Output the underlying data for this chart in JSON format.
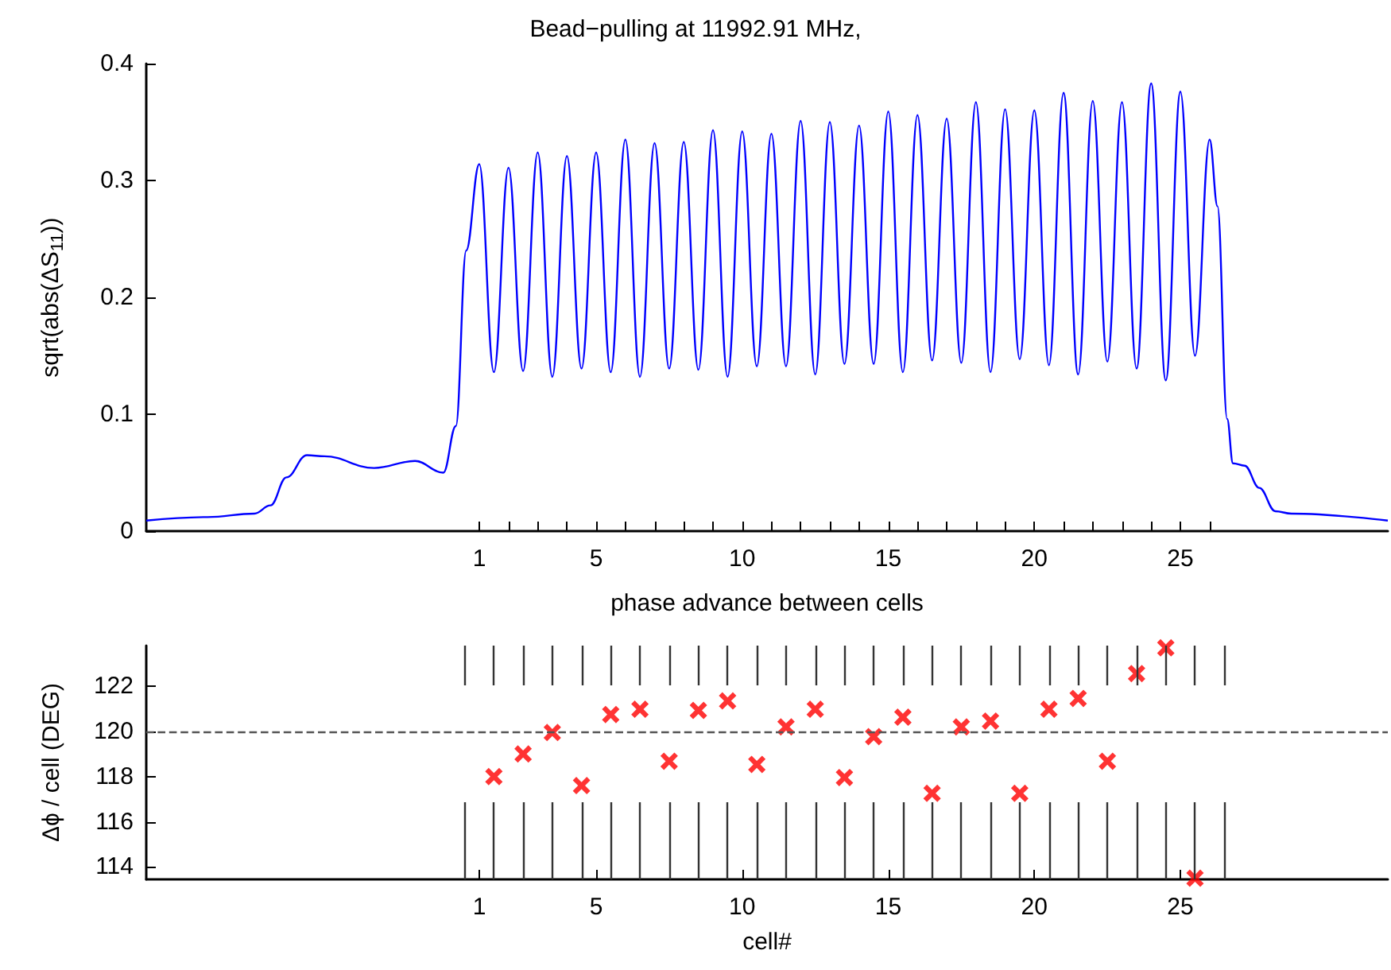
{
  "chart_data": [
    {
      "type": "line",
      "title": "Bead−pulling at 11992.91 MHz,",
      "xlabel": "phase advance between cells",
      "ylabel": "sqrt(abs(ΔS$_{11}$))",
      "color": "#0000ff",
      "x": [
        -10.4,
        -8.3,
        -6.7,
        -6.15,
        -5.6,
        -4.9,
        -4.3,
        -2.6,
        -1.2,
        -0.23,
        0.2,
        0.55,
        1,
        1.5,
        2,
        2.5,
        3,
        3.5,
        4,
        4.5,
        5,
        5.5,
        6,
        6.5,
        7,
        7.5,
        8,
        8.5,
        9,
        9.5,
        10,
        10.5,
        11,
        11.5,
        12,
        12.5,
        13,
        13.5,
        14,
        14.5,
        15,
        15.5,
        16,
        16.5,
        17,
        17.5,
        18,
        18.5,
        19,
        19.5,
        20,
        20.5,
        21,
        21.5,
        22,
        22.5,
        23,
        23.5,
        24,
        24.5,
        25,
        25.5,
        26,
        26.27,
        26.6,
        26.8,
        27.2,
        27.7,
        28.25,
        28.8,
        32.1
      ],
      "values": [
        0.009,
        0.012,
        0.015,
        0.022,
        0.046,
        0.065,
        0.064,
        0.054,
        0.06,
        0.05,
        0.09,
        0.24,
        0.314,
        0.136,
        0.311,
        0.137,
        0.324,
        0.132,
        0.321,
        0.139,
        0.324,
        0.136,
        0.335,
        0.132,
        0.332,
        0.139,
        0.333,
        0.138,
        0.343,
        0.132,
        0.342,
        0.141,
        0.34,
        0.141,
        0.351,
        0.134,
        0.35,
        0.143,
        0.347,
        0.143,
        0.359,
        0.136,
        0.356,
        0.146,
        0.353,
        0.144,
        0.367,
        0.136,
        0.361,
        0.147,
        0.36,
        0.142,
        0.375,
        0.134,
        0.368,
        0.145,
        0.367,
        0.139,
        0.383,
        0.129,
        0.376,
        0.15,
        0.335,
        0.278,
        0.096,
        0.058,
        0.056,
        0.037,
        0.017,
        0.015,
        0.009
      ],
      "xlim": [
        -10.4,
        32.1
      ],
      "xticks": [
        1,
        {
          "value": 2,
          "label": null
        },
        {
          "value": 3,
          "label": null
        },
        {
          "value": 4,
          "label": null
        },
        5,
        {
          "value": 6,
          "label": null
        },
        {
          "value": 7,
          "label": null
        },
        {
          "value": 8,
          "label": null
        },
        {
          "value": 9,
          "label": null
        },
        10,
        {
          "value": 11,
          "label": null
        },
        {
          "value": 12,
          "label": null
        },
        {
          "value": 13,
          "label": null
        },
        {
          "value": 14,
          "label": null
        },
        15,
        {
          "value": 16,
          "label": null
        },
        {
          "value": 17,
          "label": null
        },
        {
          "value": 18,
          "label": null
        },
        {
          "value": 19,
          "label": null
        },
        20,
        {
          "value": 21,
          "label": null
        },
        {
          "value": 22,
          "label": null
        },
        {
          "value": 23,
          "label": null
        },
        {
          "value": 24,
          "label": null
        },
        25,
        {
          "value": 26,
          "label": null
        }
      ],
      "ylim": [
        0,
        0.4
      ],
      "yticks": [
        0,
        0.1,
        0.2,
        0.3,
        0.4
      ]
    },
    {
      "type": "scatter",
      "xlabel": "cell#",
      "ylabel": "Δϕ / cell (DEG)",
      "color": "#ff0000",
      "marker": "cross",
      "x": [
        1.5,
        2.5,
        3.5,
        4.5,
        5.5,
        6.5,
        7.5,
        8.5,
        9.5,
        10.5,
        11.5,
        12.5,
        13.5,
        14.5,
        15.5,
        16.5,
        17.5,
        18.5,
        19.5,
        20.5,
        21.5,
        22.5,
        23.5,
        24.5,
        25.5
      ],
      "values": [
        118.0,
        119.0,
        119.95,
        117.6,
        120.75,
        120.98,
        118.68,
        120.93,
        121.35,
        118.54,
        120.2,
        120.98,
        117.96,
        119.77,
        120.63,
        117.26,
        120.2,
        120.46,
        117.26,
        120.98,
        121.46,
        118.68,
        122.56,
        123.7,
        113.5
      ],
      "xlim": [
        -10.4,
        32.1
      ],
      "xticks": [
        1,
        5,
        10,
        15,
        20,
        25
      ],
      "ylim": [
        113.45,
        123.8
      ],
      "yticks": [
        114,
        116,
        118,
        120,
        122
      ],
      "ref_lines": [
        {
          "axis": "y",
          "value": 120,
          "color": "#555555",
          "line_style": "dashed"
        },
        {
          "axis": "x",
          "value": 0.5,
          "color": "#333333"
        },
        {
          "axis": "x",
          "value": 1.5,
          "color": "#333333"
        },
        {
          "axis": "x",
          "value": 2.5,
          "color": "#333333"
        },
        {
          "axis": "x",
          "value": 3.5,
          "color": "#333333"
        },
        {
          "axis": "x",
          "value": 4.5,
          "color": "#333333"
        },
        {
          "axis": "x",
          "value": 5.5,
          "color": "#333333"
        },
        {
          "axis": "x",
          "value": 6.5,
          "color": "#333333"
        },
        {
          "axis": "x",
          "value": 7.5,
          "color": "#333333"
        },
        {
          "axis": "x",
          "value": 8.5,
          "color": "#333333"
        },
        {
          "axis": "x",
          "value": 9.5,
          "color": "#333333"
        },
        {
          "axis": "x",
          "value": 10.5,
          "color": "#333333"
        },
        {
          "axis": "x",
          "value": 11.5,
          "color": "#333333"
        },
        {
          "axis": "x",
          "value": 12.5,
          "color": "#333333"
        },
        {
          "axis": "x",
          "value": 13.5,
          "color": "#333333"
        },
        {
          "axis": "x",
          "value": 14.5,
          "color": "#333333"
        },
        {
          "axis": "x",
          "value": 15.5,
          "color": "#333333"
        },
        {
          "axis": "x",
          "value": 16.5,
          "color": "#333333"
        },
        {
          "axis": "x",
          "value": 17.5,
          "color": "#333333"
        },
        {
          "axis": "x",
          "value": 18.5,
          "color": "#333333"
        },
        {
          "axis": "x",
          "value": 19.5,
          "color": "#333333"
        },
        {
          "axis": "x",
          "value": 20.5,
          "color": "#333333"
        },
        {
          "axis": "x",
          "value": 21.5,
          "color": "#333333"
        },
        {
          "axis": "x",
          "value": 22.5,
          "color": "#333333"
        },
        {
          "axis": "x",
          "value": 23.5,
          "color": "#333333"
        },
        {
          "axis": "x",
          "value": 24.5,
          "color": "#333333"
        },
        {
          "axis": "x",
          "value": 25.5,
          "color": "#333333"
        },
        {
          "axis": "x",
          "value": 26.5,
          "color": "#333333"
        }
      ]
    }
  ]
}
